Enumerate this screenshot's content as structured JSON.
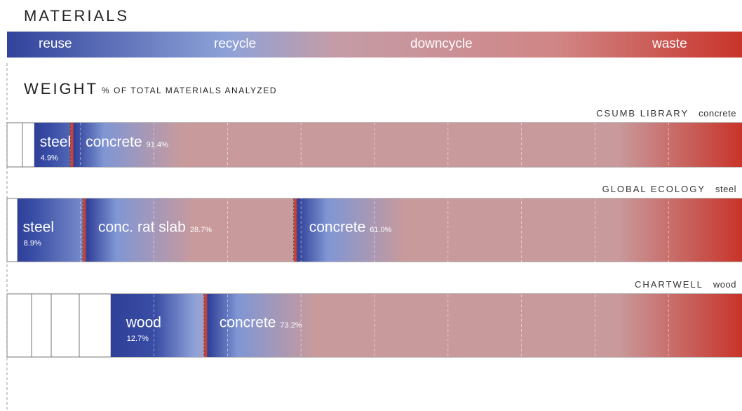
{
  "chart_data": {
    "type": "stacked-bar",
    "title": "MATERIALS",
    "scale_labels": [
      "reuse",
      "recycle",
      "downcycle",
      "waste"
    ],
    "axis_title": "WEIGHT",
    "axis_subtitle": "% OF TOTAL MATERIALS ANALYZED",
    "xlim": [
      0,
      100
    ],
    "xticks": [
      0,
      10,
      20,
      30,
      40,
      50,
      60,
      70,
      80,
      90,
      100
    ],
    "grid": true,
    "bars": [
      {
        "name": "CSUMB LIBRARY",
        "tag": "concrete",
        "segments": [
          "steel",
          "concrete"
        ],
        "values": [
          4.9,
          91.4
        ],
        "value_labels": [
          "4.9%",
          "91.4%"
        ]
      },
      {
        "name": "GLOBAL ECOLOGY",
        "tag": "steel",
        "segments": [
          "steel",
          "conc. rat slab",
          "concrete"
        ],
        "values": [
          8.9,
          28.7,
          61.0
        ],
        "value_labels": [
          "8.9%",
          "28.7%",
          "61.0%"
        ]
      },
      {
        "name": "CHARTWELL",
        "tag": "wood",
        "segments": [
          "wood",
          "concrete"
        ],
        "values": [
          12.7,
          73.2
        ],
        "value_labels": [
          "12.7%",
          "73.2%"
        ]
      }
    ]
  }
}
